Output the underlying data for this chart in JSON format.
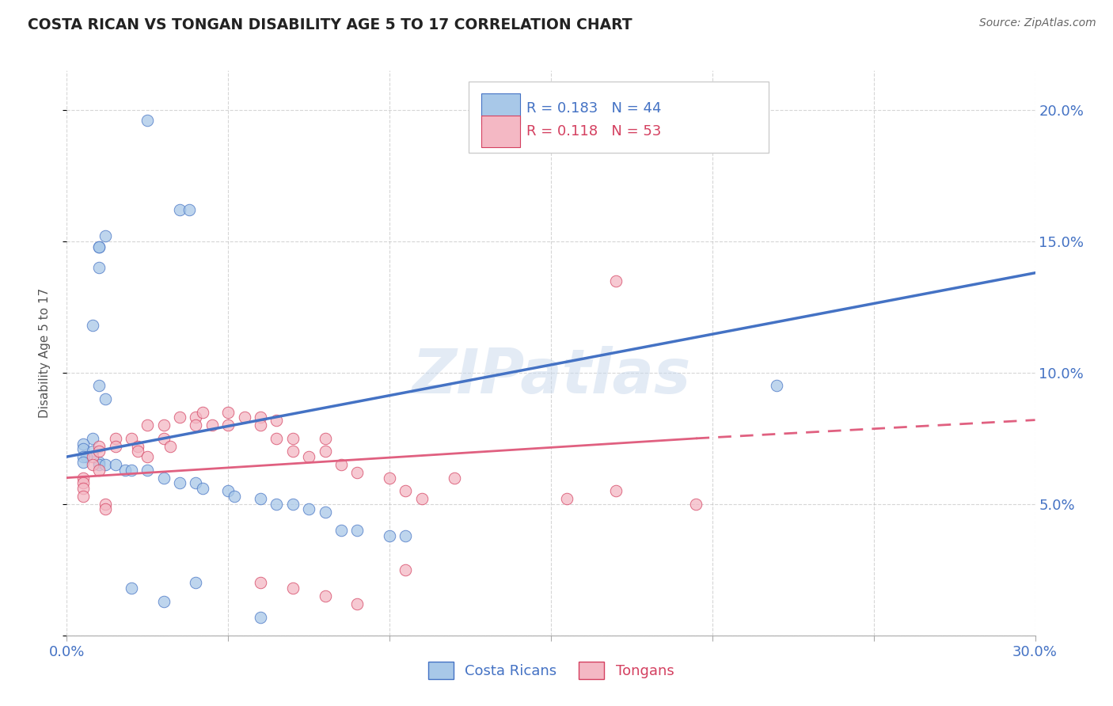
{
  "title": "COSTA RICAN VS TONGAN DISABILITY AGE 5 TO 17 CORRELATION CHART",
  "source": "Source: ZipAtlas.com",
  "ylabel": "Disability Age 5 to 17",
  "xlim": [
    0.0,
    0.3
  ],
  "ylim": [
    0.0,
    0.215
  ],
  "xticks": [
    0.0,
    0.05,
    0.1,
    0.15,
    0.2,
    0.25,
    0.3
  ],
  "xtick_labels": [
    "0.0%",
    "",
    "",
    "",
    "",
    "",
    "30.0%"
  ],
  "yticks": [
    0.0,
    0.05,
    0.1,
    0.15,
    0.2
  ],
  "ytick_labels_right": [
    "",
    "5.0%",
    "10.0%",
    "15.0%",
    "20.0%"
  ],
  "legend_blue_r": "0.183",
  "legend_blue_n": "44",
  "legend_pink_r": "0.118",
  "legend_pink_n": "53",
  "blue_color": "#a8c8e8",
  "blue_edge": "#4472c4",
  "pink_color": "#f4b8c4",
  "pink_edge": "#d44060",
  "trendline_blue": "#4472c4",
  "trendline_pink": "#e06080",
  "blue_trendline_start_x": 0.0,
  "blue_trendline_start_y": 0.068,
  "blue_trendline_end_x": 0.3,
  "blue_trendline_end_y": 0.138,
  "pink_trendline_start_x": 0.0,
  "pink_trendline_start_y": 0.06,
  "pink_trendline_solid_end_x": 0.195,
  "pink_trendline_solid_end_y": 0.075,
  "pink_trendline_dash_end_x": 0.3,
  "pink_trendline_dash_end_y": 0.082,
  "blue_points_x": [
    0.025,
    0.035,
    0.038,
    0.01,
    0.01,
    0.012,
    0.01,
    0.008,
    0.01,
    0.012,
    0.008,
    0.005,
    0.005,
    0.008,
    0.006,
    0.005,
    0.005,
    0.01,
    0.01,
    0.012,
    0.015,
    0.018,
    0.02,
    0.025,
    0.03,
    0.035,
    0.04,
    0.042,
    0.05,
    0.052,
    0.06,
    0.065,
    0.07,
    0.075,
    0.08,
    0.085,
    0.09,
    0.1,
    0.105,
    0.22,
    0.04,
    0.02,
    0.03,
    0.06
  ],
  "blue_points_y": [
    0.196,
    0.162,
    0.162,
    0.148,
    0.14,
    0.152,
    0.148,
    0.118,
    0.095,
    0.09,
    0.075,
    0.073,
    0.071,
    0.07,
    0.068,
    0.068,
    0.066,
    0.066,
    0.065,
    0.065,
    0.065,
    0.063,
    0.063,
    0.063,
    0.06,
    0.058,
    0.058,
    0.056,
    0.055,
    0.053,
    0.052,
    0.05,
    0.05,
    0.048,
    0.047,
    0.04,
    0.04,
    0.038,
    0.038,
    0.095,
    0.02,
    0.018,
    0.013,
    0.007
  ],
  "pink_points_x": [
    0.005,
    0.005,
    0.005,
    0.005,
    0.008,
    0.008,
    0.01,
    0.01,
    0.01,
    0.012,
    0.012,
    0.015,
    0.015,
    0.02,
    0.022,
    0.022,
    0.025,
    0.025,
    0.03,
    0.03,
    0.032,
    0.035,
    0.04,
    0.04,
    0.042,
    0.045,
    0.05,
    0.05,
    0.055,
    0.06,
    0.06,
    0.065,
    0.065,
    0.07,
    0.07,
    0.075,
    0.08,
    0.08,
    0.085,
    0.09,
    0.1,
    0.105,
    0.11,
    0.12,
    0.155,
    0.17,
    0.17,
    0.195,
    0.06,
    0.07,
    0.08,
    0.09,
    0.105
  ],
  "pink_points_y": [
    0.06,
    0.058,
    0.056,
    0.053,
    0.068,
    0.065,
    0.072,
    0.07,
    0.063,
    0.05,
    0.048,
    0.075,
    0.072,
    0.075,
    0.072,
    0.07,
    0.08,
    0.068,
    0.08,
    0.075,
    0.072,
    0.083,
    0.083,
    0.08,
    0.085,
    0.08,
    0.085,
    0.08,
    0.083,
    0.083,
    0.08,
    0.075,
    0.082,
    0.075,
    0.07,
    0.068,
    0.075,
    0.07,
    0.065,
    0.062,
    0.06,
    0.055,
    0.052,
    0.06,
    0.052,
    0.135,
    0.055,
    0.05,
    0.02,
    0.018,
    0.015,
    0.012,
    0.025
  ]
}
